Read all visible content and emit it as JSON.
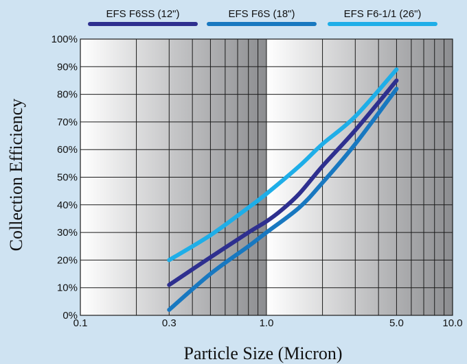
{
  "chart_data": {
    "type": "line",
    "xlabel": "Particle Size (Micron)",
    "ylabel": "Collection Efficiency",
    "x_scale": "log",
    "xlim": [
      0.1,
      10.0
    ],
    "ylim": [
      0,
      100
    ],
    "x_tick_labels": [
      {
        "value": 0.1,
        "label": "0.1"
      },
      {
        "value": 0.3,
        "label": "0.3"
      },
      {
        "value": 1.0,
        "label": "1.0"
      },
      {
        "value": 5.0,
        "label": "5.0"
      },
      {
        "value": 10.0,
        "label": "10.0"
      }
    ],
    "y_tick_labels": [
      {
        "value": 0,
        "label": "0%"
      },
      {
        "value": 10,
        "label": "10%"
      },
      {
        "value": 20,
        "label": "20%"
      },
      {
        "value": 30,
        "label": "30%"
      },
      {
        "value": 40,
        "label": "40%"
      },
      {
        "value": 50,
        "label": "50%"
      },
      {
        "value": 60,
        "label": "60%"
      },
      {
        "value": 70,
        "label": "70%"
      },
      {
        "value": 80,
        "label": "80%"
      },
      {
        "value": 90,
        "label": "90%"
      },
      {
        "value": 100,
        "label": "100%"
      }
    ],
    "grid": true,
    "legend_position": "top",
    "series": [
      {
        "name": "EFS F6SS (12\")",
        "color": "#2e2f8f",
        "points": [
          {
            "x": 0.3,
            "y": 11
          },
          {
            "x": 0.5,
            "y": 21
          },
          {
            "x": 0.8,
            "y": 30
          },
          {
            "x": 1.0,
            "y": 34
          },
          {
            "x": 1.2,
            "y": 38
          },
          {
            "x": 1.5,
            "y": 44
          },
          {
            "x": 2.0,
            "y": 54
          },
          {
            "x": 3.0,
            "y": 67
          },
          {
            "x": 5.0,
            "y": 85
          }
        ]
      },
      {
        "name": "EFS F6S (18\")",
        "color": "#1878c0",
        "points": [
          {
            "x": 0.3,
            "y": 2
          },
          {
            "x": 0.5,
            "y": 15
          },
          {
            "x": 0.8,
            "y": 25
          },
          {
            "x": 1.0,
            "y": 30
          },
          {
            "x": 1.5,
            "y": 39
          },
          {
            "x": 2.0,
            "y": 48
          },
          {
            "x": 3.0,
            "y": 62
          },
          {
            "x": 5.0,
            "y": 82
          }
        ]
      },
      {
        "name": "EFS F6-1/1 (26\")",
        "color": "#1eaee8",
        "points": [
          {
            "x": 0.3,
            "y": 20
          },
          {
            "x": 0.5,
            "y": 29
          },
          {
            "x": 0.8,
            "y": 39
          },
          {
            "x": 1.0,
            "y": 44
          },
          {
            "x": 1.5,
            "y": 54
          },
          {
            "x": 2.0,
            "y": 62
          },
          {
            "x": 3.0,
            "y": 72
          },
          {
            "x": 5.0,
            "y": 89
          }
        ]
      }
    ]
  }
}
